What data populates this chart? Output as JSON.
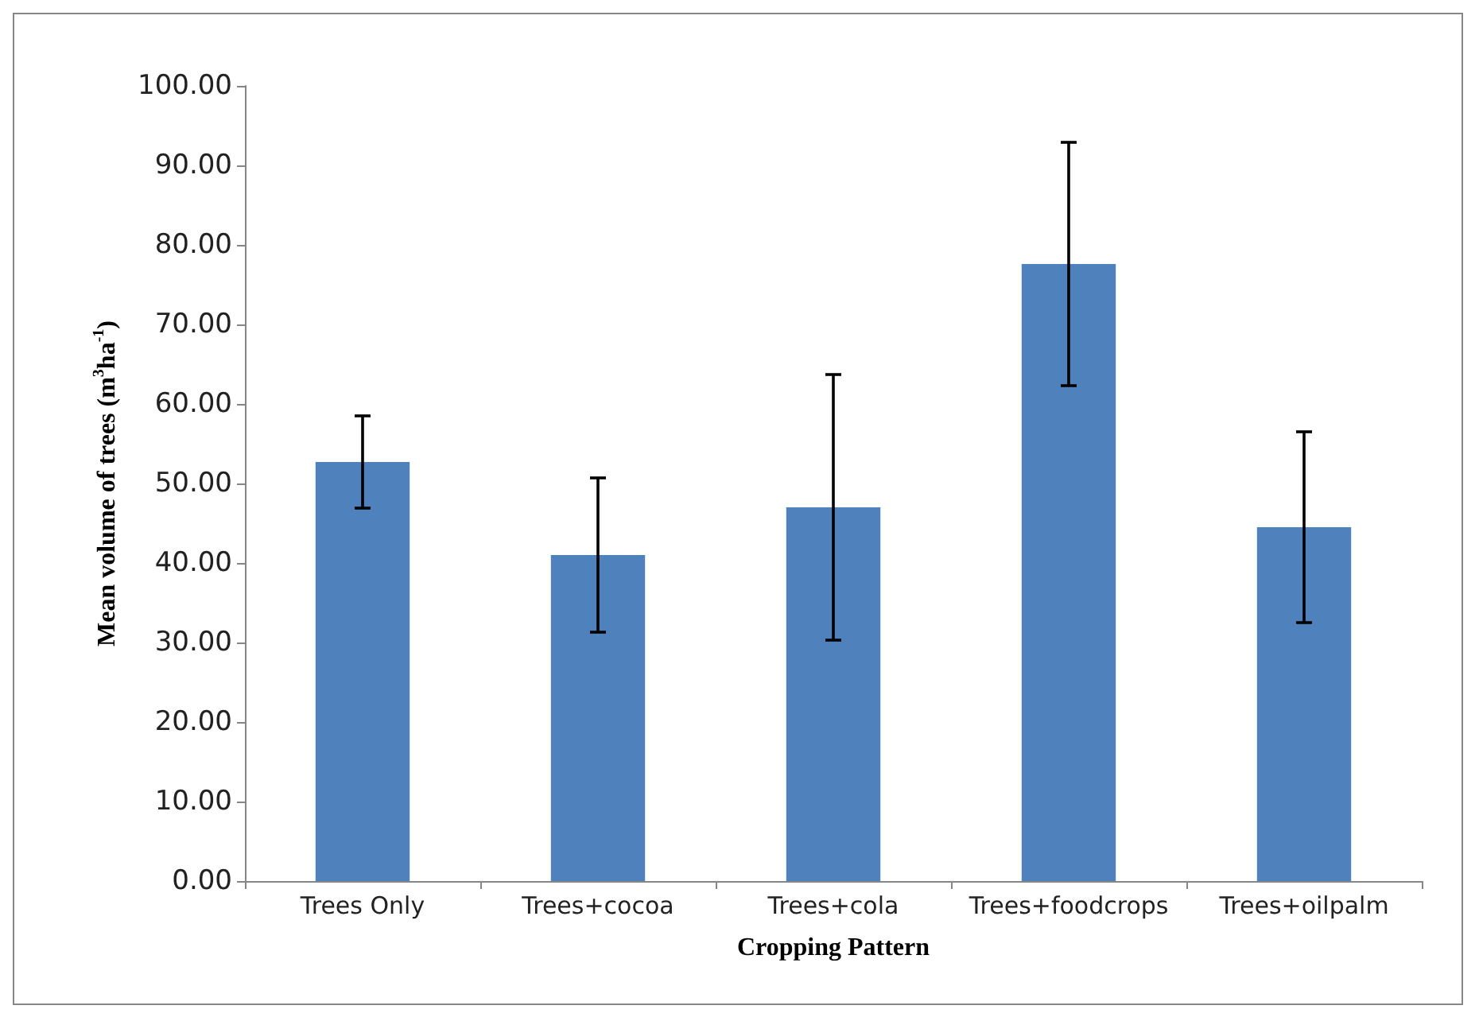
{
  "chart_data": {
    "type": "bar",
    "xlabel": "Cropping Pattern",
    "ylabel": "Mean volume of trees (m$^{3}$ha$^{-1}$)",
    "categories": [
      "Trees Only",
      "Trees+cocoa",
      "Trees+cola",
      "Trees+foodcrops",
      "Trees+oilpalm"
    ],
    "values": [
      52.7,
      41.0,
      47.0,
      77.6,
      44.5
    ],
    "errors": [
      5.8,
      9.7,
      16.7,
      15.3,
      12.0
    ],
    "color": "#4f81bd",
    "ylim": [
      0,
      100
    ],
    "yticks": [
      {
        "value": 0,
        "label": "0.00"
      },
      {
        "value": 10,
        "label": "10.00"
      },
      {
        "value": 20,
        "label": "20.00"
      },
      {
        "value": 30,
        "label": "30.00"
      },
      {
        "value": 40,
        "label": "40.00"
      },
      {
        "value": 50,
        "label": "50.00"
      },
      {
        "value": 60,
        "label": "60.00"
      },
      {
        "value": 70,
        "label": "70.00"
      },
      {
        "value": 80,
        "label": "80.00"
      },
      {
        "value": 90,
        "label": "90.00"
      },
      {
        "value": 100,
        "label": "100.00"
      }
    ],
    "grid": false
  }
}
